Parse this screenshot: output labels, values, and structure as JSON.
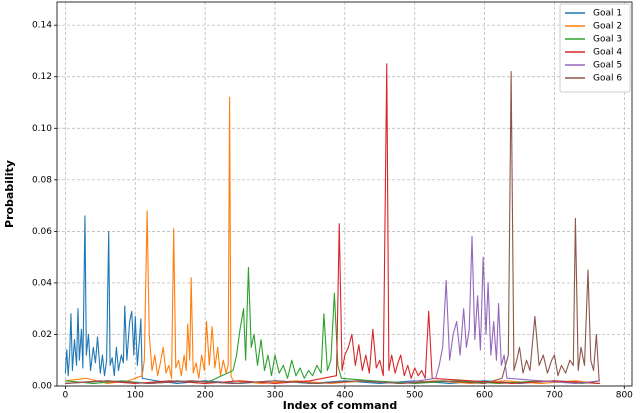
{
  "chart_data": {
    "type": "line",
    "xlabel": "Index of command",
    "ylabel": "Probability",
    "xlim": [
      -12,
      811
    ],
    "ylim": [
      0,
      0.149
    ],
    "xticks": [
      0,
      100,
      200,
      300,
      400,
      500,
      600,
      700,
      800
    ],
    "yticks": [
      {
        "value": 0,
        "label": "0.00"
      },
      0.02,
      0.04,
      0.06,
      0.08,
      {
        "value": 0.1,
        "label": "0.10"
      },
      0.12,
      0.14
    ],
    "grid": true,
    "legend": "upper right",
    "series": [
      {
        "name": "Goal 1",
        "color": "#1f77b4",
        "x": [
          0,
          2,
          4,
          6,
          8,
          10,
          13,
          16,
          18,
          20,
          23,
          25,
          28,
          30,
          33,
          36,
          40,
          43,
          46,
          50,
          53,
          56,
          59,
          62,
          64,
          67,
          70,
          73,
          76,
          80,
          83,
          85,
          88,
          92,
          95,
          98,
          100,
          103,
          106,
          108,
          110,
          130,
          160,
          200,
          250,
          300,
          350,
          400,
          450,
          500,
          550,
          600,
          650,
          700,
          765
        ],
        "values": [
          0.005,
          0.014,
          0.004,
          0.012,
          0.028,
          0.006,
          0.018,
          0.008,
          0.03,
          0.01,
          0.022,
          0.007,
          0.066,
          0.012,
          0.02,
          0.006,
          0.015,
          0.009,
          0.019,
          0.005,
          0.012,
          0.004,
          0.01,
          0.06,
          0.008,
          0.011,
          0.004,
          0.015,
          0.006,
          0.012,
          0.009,
          0.031,
          0.01,
          0.025,
          0.029,
          0.012,
          0.027,
          0.008,
          0.018,
          0.026,
          0.003,
          0.002,
          0.001,
          0.002,
          0.001,
          0.002,
          0.001,
          0.002,
          0.001,
          0.002,
          0.001,
          0.002,
          0.001,
          0.002,
          0.001
        ]
      },
      {
        "name": "Goal 2",
        "color": "#ff7f0e",
        "x": [
          0,
          30,
          60,
          90,
          110,
          113,
          117,
          120,
          124,
          128,
          132,
          136,
          140,
          144,
          148,
          152,
          155,
          158,
          162,
          166,
          170,
          173,
          175,
          178,
          180,
          183,
          187,
          191,
          195,
          199,
          202,
          206,
          210,
          214,
          218,
          222,
          226,
          230,
          233,
          235,
          237,
          240,
          280,
          330,
          380,
          430,
          480,
          530,
          580,
          630,
          680,
          730,
          765
        ],
        "values": [
          0.002,
          0.003,
          0.001,
          0.002,
          0.004,
          0.01,
          0.068,
          0.02,
          0.006,
          0.012,
          0.004,
          0.009,
          0.015,
          0.005,
          0.008,
          0.003,
          0.061,
          0.007,
          0.01,
          0.004,
          0.012,
          0.006,
          0.024,
          0.01,
          0.042,
          0.005,
          0.009,
          0.003,
          0.012,
          0.006,
          0.025,
          0.008,
          0.023,
          0.007,
          0.015,
          0.004,
          0.01,
          0.005,
          0.008,
          0.112,
          0.004,
          0.002,
          0.001,
          0.002,
          0.001,
          0.002,
          0.001,
          0.002,
          0.001,
          0.002,
          0.001,
          0.002,
          0.001
        ]
      },
      {
        "name": "Goal 3",
        "color": "#2ca02c",
        "x": [
          0,
          40,
          80,
          120,
          160,
          200,
          240,
          245,
          250,
          255,
          258,
          262,
          266,
          270,
          275,
          280,
          285,
          290,
          295,
          300,
          306,
          312,
          318,
          324,
          330,
          336,
          342,
          348,
          354,
          360,
          366,
          370,
          375,
          380,
          385,
          390,
          395,
          440,
          500,
          560,
          620,
          680,
          740,
          765
        ],
        "values": [
          0.002,
          0.001,
          0.002,
          0.001,
          0.002,
          0.001,
          0.006,
          0.012,
          0.022,
          0.03,
          0.01,
          0.046,
          0.015,
          0.02,
          0.008,
          0.018,
          0.006,
          0.012,
          0.004,
          0.012,
          0.005,
          0.008,
          0.003,
          0.01,
          0.004,
          0.007,
          0.003,
          0.006,
          0.004,
          0.008,
          0.005,
          0.028,
          0.006,
          0.01,
          0.036,
          0.008,
          0.003,
          0.002,
          0.001,
          0.002,
          0.001,
          0.002,
          0.001,
          0.002
        ]
      },
      {
        "name": "Goal 4",
        "color": "#d62728",
        "x": [
          0,
          50,
          100,
          150,
          200,
          250,
          300,
          350,
          388,
          392,
          396,
          400,
          405,
          410,
          415,
          420,
          425,
          430,
          435,
          440,
          445,
          450,
          455,
          460,
          463,
          467,
          472,
          476,
          480,
          485,
          490,
          495,
          500,
          505,
          510,
          515,
          520,
          525,
          580,
          640,
          700,
          765
        ],
        "values": [
          0.001,
          0.002,
          0.001,
          0.002,
          0.001,
          0.002,
          0.001,
          0.002,
          0.004,
          0.063,
          0.006,
          0.012,
          0.015,
          0.02,
          0.008,
          0.016,
          0.006,
          0.012,
          0.005,
          0.022,
          0.007,
          0.01,
          0.004,
          0.125,
          0.006,
          0.012,
          0.005,
          0.009,
          0.012,
          0.004,
          0.008,
          0.003,
          0.007,
          0.004,
          0.006,
          0.003,
          0.029,
          0.003,
          0.002,
          0.001,
          0.002,
          0.001
        ]
      },
      {
        "name": "Goal 5",
        "color": "#9467bd",
        "x": [
          0,
          60,
          120,
          180,
          240,
          300,
          360,
          420,
          480,
          530,
          535,
          540,
          545,
          550,
          555,
          560,
          565,
          570,
          574,
          578,
          582,
          586,
          590,
          594,
          598,
          602,
          605,
          609,
          613,
          617,
          620,
          624,
          628,
          632,
          680,
          730,
          765
        ],
        "values": [
          0.001,
          0.002,
          0.001,
          0.002,
          0.001,
          0.002,
          0.001,
          0.002,
          0.001,
          0.003,
          0.008,
          0.015,
          0.041,
          0.01,
          0.02,
          0.025,
          0.012,
          0.03,
          0.015,
          0.022,
          0.058,
          0.018,
          0.035,
          0.014,
          0.05,
          0.02,
          0.04,
          0.012,
          0.025,
          0.01,
          0.032,
          0.008,
          0.012,
          0.003,
          0.002,
          0.001,
          0.002
        ]
      },
      {
        "name": "Goal 6",
        "color": "#8c564b",
        "x": [
          0,
          60,
          120,
          180,
          240,
          300,
          360,
          420,
          480,
          540,
          600,
          625,
          630,
          634,
          638,
          642,
          646,
          650,
          655,
          660,
          665,
          672,
          678,
          684,
          690,
          696,
          700,
          705,
          710,
          716,
          722,
          727,
          730,
          734,
          738,
          743,
          748,
          752,
          756,
          760,
          764
        ],
        "values": [
          0.001,
          0.002,
          0.001,
          0.002,
          0.001,
          0.002,
          0.001,
          0.002,
          0.001,
          0.002,
          0.001,
          0.003,
          0.008,
          0.012,
          0.122,
          0.006,
          0.01,
          0.015,
          0.005,
          0.01,
          0.006,
          0.027,
          0.008,
          0.012,
          0.005,
          0.01,
          0.012,
          0.004,
          0.008,
          0.005,
          0.01,
          0.008,
          0.065,
          0.006,
          0.015,
          0.008,
          0.045,
          0.01,
          0.006,
          0.02,
          0.002
        ]
      }
    ]
  }
}
